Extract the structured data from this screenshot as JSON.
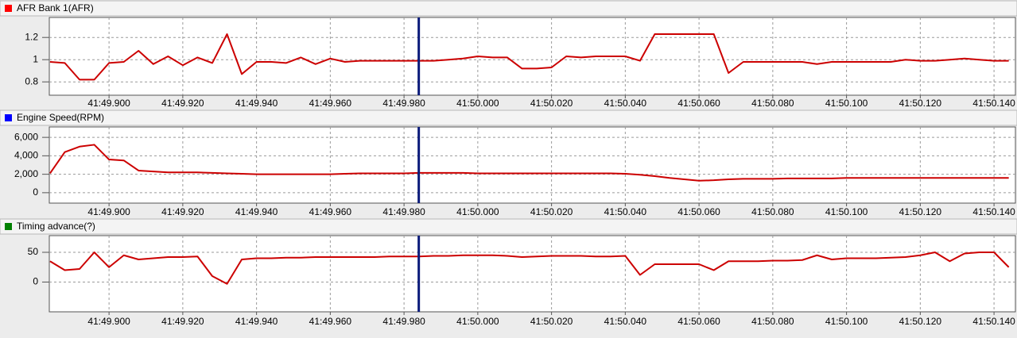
{
  "chart_data": [
    {
      "type": "line",
      "title": "AFR Bank 1(AFR)",
      "swatch": "#ff0000",
      "cursor": 2509.984,
      "grid": true,
      "xlim": [
        2509.8838,
        2510.1458
      ],
      "ylim": [
        0.68,
        1.38
      ],
      "xticks": [
        {
          "value": 2509.9,
          "label": "41:49.900"
        },
        {
          "value": 2509.92,
          "label": "41:49.920"
        },
        {
          "value": 2509.94,
          "label": "41:49.940"
        },
        {
          "value": 2509.96,
          "label": "41:49.960"
        },
        {
          "value": 2509.98,
          "label": "41:49.980"
        },
        {
          "value": 2510.0,
          "label": "41:50.000"
        },
        {
          "value": 2510.02,
          "label": "41:50.020"
        },
        {
          "value": 2510.04,
          "label": "41:50.040"
        },
        {
          "value": 2510.06,
          "label": "41:50.060"
        },
        {
          "value": 2510.08,
          "label": "41:50.080"
        },
        {
          "value": 2510.1,
          "label": "41:50.100"
        },
        {
          "value": 2510.12,
          "label": "41:50.120"
        },
        {
          "value": 2510.14,
          "label": "41:50.140"
        }
      ],
      "yticks": [
        0.8,
        1,
        1.2
      ],
      "x": [
        2509.884,
        2509.888,
        2509.892,
        2509.896,
        2509.9,
        2509.904,
        2509.908,
        2509.912,
        2509.916,
        2509.92,
        2509.924,
        2509.928,
        2509.932,
        2509.936,
        2509.94,
        2509.944,
        2509.948,
        2509.952,
        2509.956,
        2509.96,
        2509.964,
        2509.968,
        2509.972,
        2509.976,
        2509.98,
        2509.984,
        2509.988,
        2509.992,
        2509.996,
        2510,
        2510.004,
        2510.008,
        2510.012,
        2510.016,
        2510.02,
        2510.024,
        2510.028,
        2510.032,
        2510.036,
        2510.04,
        2510.044,
        2510.048,
        2510.052,
        2510.056,
        2510.06,
        2510.064,
        2510.068,
        2510.072,
        2510.076,
        2510.08,
        2510.084,
        2510.088,
        2510.092,
        2510.096,
        2510.1,
        2510.104,
        2510.108,
        2510.112,
        2510.116,
        2510.12,
        2510.124,
        2510.128,
        2510.132,
        2510.136,
        2510.14,
        2510.144
      ],
      "series": [
        {
          "name": "AFR Bank 1(AFR)",
          "color": "#cc0000",
          "values": [
            0.98,
            0.97,
            0.82,
            0.82,
            0.97,
            0.98,
            1.08,
            0.96,
            1.03,
            0.95,
            1.02,
            0.97,
            1.23,
            0.87,
            0.98,
            0.98,
            0.97,
            1.02,
            0.96,
            1.01,
            0.98,
            0.99,
            0.99,
            0.99,
            0.99,
            0.99,
            0.99,
            1.0,
            1.01,
            1.03,
            1.02,
            1.02,
            0.92,
            0.92,
            0.93,
            1.03,
            1.02,
            1.03,
            1.03,
            1.03,
            0.99,
            1.23,
            1.23,
            1.23,
            1.23,
            1.23,
            0.88,
            0.98,
            0.98,
            0.98,
            0.98,
            0.98,
            0.96,
            0.98,
            0.98,
            0.98,
            0.98,
            0.98,
            1.0,
            0.99,
            0.99,
            1.0,
            1.01,
            1.0,
            0.99,
            0.99
          ]
        }
      ]
    },
    {
      "type": "line",
      "title": "Engine Speed(RPM)",
      "swatch": "#0000ff",
      "cursor": 2509.984,
      "grid": true,
      "xlim": [
        2509.8838,
        2510.1458
      ],
      "ylim": [
        -1130,
        7130
      ],
      "xticks": [
        {
          "value": 2509.9,
          "label": "41:49.900"
        },
        {
          "value": 2509.92,
          "label": "41:49.920"
        },
        {
          "value": 2509.94,
          "label": "41:49.940"
        },
        {
          "value": 2509.96,
          "label": "41:49.960"
        },
        {
          "value": 2509.98,
          "label": "41:49.980"
        },
        {
          "value": 2510.0,
          "label": "41:50.000"
        },
        {
          "value": 2510.02,
          "label": "41:50.020"
        },
        {
          "value": 2510.04,
          "label": "41:50.040"
        },
        {
          "value": 2510.06,
          "label": "41:50.060"
        },
        {
          "value": 2510.08,
          "label": "41:50.080"
        },
        {
          "value": 2510.1,
          "label": "41:50.100"
        },
        {
          "value": 2510.12,
          "label": "41:50.120"
        },
        {
          "value": 2510.14,
          "label": "41:50.140"
        }
      ],
      "yticks": [
        0,
        {
          "value": 2000,
          "label": "2,000"
        },
        {
          "value": 4000,
          "label": "4,000"
        },
        {
          "value": 6000,
          "label": "6,000"
        }
      ],
      "x": [
        2509.884,
        2509.888,
        2509.892,
        2509.896,
        2509.9,
        2509.904,
        2509.908,
        2509.912,
        2509.916,
        2509.92,
        2509.924,
        2509.928,
        2509.932,
        2509.936,
        2509.94,
        2509.944,
        2509.948,
        2509.952,
        2509.956,
        2509.96,
        2509.964,
        2509.968,
        2509.972,
        2509.976,
        2509.98,
        2509.984,
        2509.988,
        2509.992,
        2509.996,
        2510,
        2510.004,
        2510.008,
        2510.012,
        2510.016,
        2510.02,
        2510.024,
        2510.028,
        2510.032,
        2510.036,
        2510.04,
        2510.044,
        2510.048,
        2510.052,
        2510.056,
        2510.06,
        2510.064,
        2510.068,
        2510.072,
        2510.076,
        2510.08,
        2510.084,
        2510.088,
        2510.092,
        2510.096,
        2510.1,
        2510.104,
        2510.108,
        2510.112,
        2510.116,
        2510.12,
        2510.124,
        2510.128,
        2510.132,
        2510.136,
        2510.14,
        2510.144
      ],
      "series": [
        {
          "name": "Engine Speed(RPM)",
          "color": "#cc0000",
          "values": [
            2100,
            4400,
            5000,
            5200,
            3600,
            3500,
            2400,
            2300,
            2200,
            2200,
            2200,
            2150,
            2100,
            2050,
            2000,
            2000,
            2000,
            2000,
            2000,
            2000,
            2050,
            2100,
            2100,
            2100,
            2100,
            2150,
            2150,
            2150,
            2150,
            2100,
            2100,
            2100,
            2100,
            2100,
            2100,
            2100,
            2100,
            2100,
            2100,
            2050,
            1950,
            1800,
            1600,
            1450,
            1300,
            1350,
            1450,
            1500,
            1500,
            1500,
            1550,
            1550,
            1550,
            1550,
            1600,
            1600,
            1600,
            1600,
            1600,
            1600,
            1600,
            1600,
            1600,
            1600,
            1600,
            1600
          ]
        }
      ]
    },
    {
      "type": "line",
      "title": "Timing advance(?)",
      "swatch": "#008000",
      "cursor": 2509.984,
      "grid": true,
      "xlim": [
        2509.8838,
        2510.1458
      ],
      "ylim": [
        -50,
        78
      ],
      "xticks": [
        {
          "value": 2509.9,
          "label": "41:49.900"
        },
        {
          "value": 2509.92,
          "label": "41:49.920"
        },
        {
          "value": 2509.94,
          "label": "41:49.940"
        },
        {
          "value": 2509.96,
          "label": "41:49.960"
        },
        {
          "value": 2509.98,
          "label": "41:49.980"
        },
        {
          "value": 2510.0,
          "label": "41:50.000"
        },
        {
          "value": 2510.02,
          "label": "41:50.020"
        },
        {
          "value": 2510.04,
          "label": "41:50.040"
        },
        {
          "value": 2510.06,
          "label": "41:50.060"
        },
        {
          "value": 2510.08,
          "label": "41:50.080"
        },
        {
          "value": 2510.1,
          "label": "41:50.100"
        },
        {
          "value": 2510.12,
          "label": "41:50.120"
        },
        {
          "value": 2510.14,
          "label": "41:50.140"
        }
      ],
      "yticks": [
        0,
        50
      ],
      "x": [
        2509.884,
        2509.888,
        2509.892,
        2509.896,
        2509.9,
        2509.904,
        2509.908,
        2509.912,
        2509.916,
        2509.92,
        2509.924,
        2509.928,
        2509.932,
        2509.936,
        2509.94,
        2509.944,
        2509.948,
        2509.952,
        2509.956,
        2509.96,
        2509.964,
        2509.968,
        2509.972,
        2509.976,
        2509.98,
        2509.984,
        2509.988,
        2509.992,
        2509.996,
        2510,
        2510.004,
        2510.008,
        2510.012,
        2510.016,
        2510.02,
        2510.024,
        2510.028,
        2510.032,
        2510.036,
        2510.04,
        2510.044,
        2510.048,
        2510.052,
        2510.056,
        2510.06,
        2510.064,
        2510.068,
        2510.072,
        2510.076,
        2510.08,
        2510.084,
        2510.088,
        2510.092,
        2510.096,
        2510.1,
        2510.104,
        2510.108,
        2510.112,
        2510.116,
        2510.12,
        2510.124,
        2510.128,
        2510.132,
        2510.136,
        2510.14,
        2510.144
      ],
      "series": [
        {
          "name": "Timing advance(?)",
          "color": "#cc0000",
          "values": [
            35,
            20,
            22,
            50,
            25,
            45,
            38,
            40,
            42,
            42,
            43,
            10,
            -3,
            38,
            40,
            40,
            41,
            41,
            42,
            42,
            42,
            42,
            42,
            43,
            43,
            43,
            44,
            44,
            45,
            45,
            45,
            44,
            42,
            43,
            44,
            44,
            44,
            43,
            43,
            44,
            12,
            30,
            30,
            30,
            30,
            20,
            35,
            35,
            35,
            36,
            36,
            37,
            45,
            38,
            40,
            40,
            40,
            41,
            42,
            45,
            50,
            35,
            48,
            50,
            50,
            25
          ]
        }
      ]
    }
  ]
}
